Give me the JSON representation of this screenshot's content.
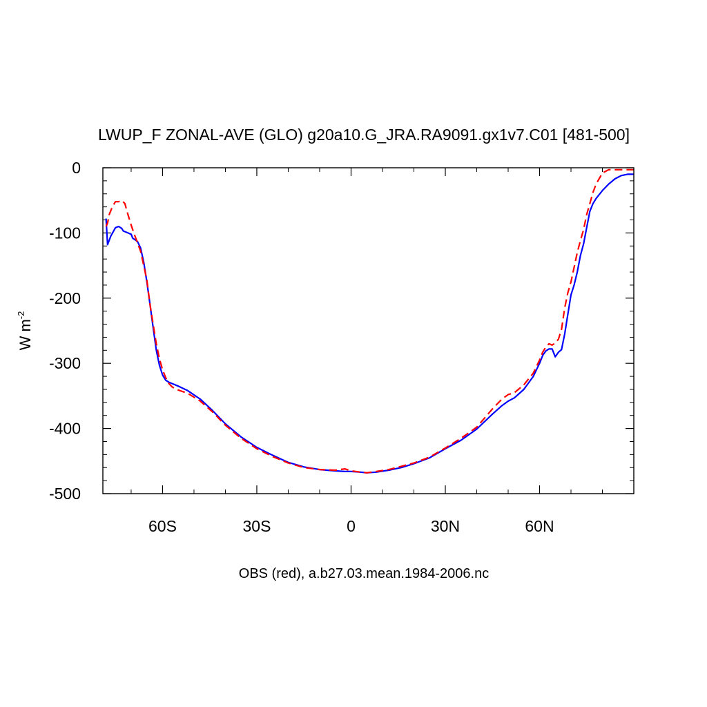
{
  "chart_data": {
    "type": "line",
    "title": "LWUP_F ZONAL-AVE (GLO) g20a10.G_JRA.RA9091.gx1v7.C01 [481-500]",
    "ylabel": {
      "base": "W m",
      "superscript": "-2"
    },
    "caption": "OBS (red), a.b27.03.mean.1984-2006.nc",
    "xlim": [
      -79,
      90
    ],
    "ylim": [
      -500,
      0
    ],
    "x_ticks": [
      {
        "value": -60,
        "label": "60S"
      },
      {
        "value": -30,
        "label": "30S"
      },
      {
        "value": 0,
        "label": "0"
      },
      {
        "value": 30,
        "label": "30N"
      },
      {
        "value": 60,
        "label": "60N"
      }
    ],
    "y_ticks": [
      {
        "value": 0,
        "label": "0"
      },
      {
        "value": -100,
        "label": "-100"
      },
      {
        "value": -200,
        "label": "-200"
      },
      {
        "value": -300,
        "label": "-300"
      },
      {
        "value": -400,
        "label": "-400"
      },
      {
        "value": -500,
        "label": "-500"
      }
    ],
    "grid": false,
    "legend": "none",
    "series": [
      {
        "color": "#0000ff",
        "dashed": false,
        "x": [
          -78,
          -77.5,
          -76.5,
          -75,
          -74,
          -73,
          -72.5,
          -72,
          -71,
          -70,
          -69.5,
          -68,
          -67,
          -66,
          -65,
          -64,
          -63,
          -62,
          -61,
          -60,
          -59,
          -58,
          -57,
          -56,
          -55,
          -52,
          -48,
          -44,
          -40,
          -35,
          -30,
          -25,
          -20,
          -15,
          -10,
          -5,
          -2,
          0,
          3,
          5,
          8,
          12,
          16,
          20,
          25,
          30,
          35,
          40,
          45,
          48,
          50,
          52,
          55,
          58,
          60,
          61,
          62,
          63,
          64,
          65,
          66,
          67,
          68,
          69,
          70,
          71,
          72,
          73,
          74,
          75,
          76,
          77,
          78,
          80,
          82,
          84,
          86,
          88,
          89,
          90
        ],
        "y": [
          -78,
          -118,
          -105,
          -92,
          -90,
          -93,
          -97,
          -98,
          -100,
          -102,
          -108,
          -113,
          -123,
          -145,
          -175,
          -210,
          -245,
          -280,
          -303,
          -318,
          -326,
          -329,
          -331,
          -333,
          -335,
          -342,
          -355,
          -373,
          -393,
          -413,
          -429,
          -441,
          -452,
          -459,
          -463,
          -465,
          -466,
          -466,
          -467,
          -468,
          -467,
          -464,
          -460,
          -454,
          -445,
          -431,
          -418,
          -401,
          -378,
          -365,
          -358,
          -353,
          -340,
          -320,
          -300,
          -288,
          -281,
          -278,
          -278,
          -290,
          -283,
          -279,
          -255,
          -225,
          -195,
          -180,
          -160,
          -135,
          -117,
          -92,
          -67,
          -55,
          -47,
          -35,
          -25,
          -17,
          -12,
          -10,
          -10,
          -10
        ]
      },
      {
        "color": "#ff0000",
        "dashed": true,
        "x": [
          -78,
          -77.5,
          -77,
          -76,
          -75,
          -74,
          -73,
          -72,
          -71,
          -70,
          -69,
          -68,
          -67,
          -66,
          -65,
          -64,
          -63,
          -62,
          -61,
          -60,
          -59,
          -58,
          -57,
          -56,
          -55,
          -52,
          -48,
          -44,
          -40,
          -35,
          -30,
          -25,
          -20,
          -15,
          -10,
          -5,
          -2,
          0,
          3,
          5,
          8,
          12,
          16,
          20,
          25,
          30,
          35,
          40,
          45,
          48,
          50,
          52,
          55,
          58,
          60,
          61,
          62,
          63,
          64,
          65,
          66,
          67,
          68,
          69,
          70,
          71,
          72,
          73,
          74,
          75,
          76,
          77,
          78,
          80,
          82,
          83,
          85,
          88,
          90
        ],
        "y": [
          -90,
          -85,
          -72,
          -60,
          -52,
          -52,
          -50,
          -55,
          -72,
          -88,
          -102,
          -115,
          -128,
          -150,
          -172,
          -210,
          -240,
          -270,
          -293,
          -310,
          -322,
          -331,
          -336,
          -339,
          -341,
          -346,
          -358,
          -375,
          -395,
          -415,
          -431,
          -443,
          -453,
          -460,
          -463,
          -464,
          -462,
          -465,
          -467,
          -468,
          -466,
          -463,
          -458,
          -453,
          -444,
          -430,
          -415,
          -398,
          -370,
          -355,
          -348,
          -345,
          -333,
          -315,
          -295,
          -283,
          -275,
          -270,
          -272,
          -269,
          -263,
          -248,
          -215,
          -192,
          -175,
          -153,
          -130,
          -112,
          -95,
          -72,
          -55,
          -38,
          -25,
          -8,
          -3,
          -3,
          -3,
          -3,
          -3
        ]
      }
    ]
  }
}
